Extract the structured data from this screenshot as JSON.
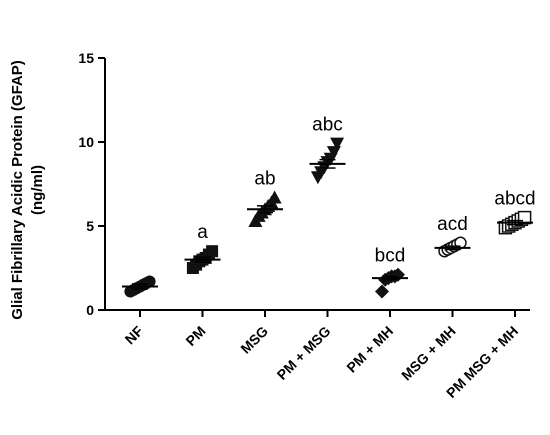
{
  "chart_data": {
    "type": "scatter",
    "title": "",
    "ylabel": {
      "line1": "Glial Fibrillary Acidic Protein (GFAP)",
      "line2": "(ng/ml)"
    },
    "xlabel": "",
    "ylim": [
      0,
      15
    ],
    "yticks": [
      "0",
      "5",
      "10",
      "15"
    ],
    "ytick_values": [
      0,
      5,
      10,
      15
    ],
    "grid": false,
    "legend": "none",
    "categories": [
      "NF",
      "PM",
      "MSG",
      "PM + MSG",
      "PM + MH",
      "MSG + MH",
      "PM MSG + MH"
    ],
    "groups": [
      {
        "category": "NF",
        "marker": "circle-filled",
        "mean": 1.4,
        "error": 0.15,
        "significance": "",
        "points": [
          1.1,
          1.2,
          1.3,
          1.4,
          1.5,
          1.6,
          1.7
        ]
      },
      {
        "category": "PM",
        "marker": "square-filled",
        "mean": 3.0,
        "error": 0.15,
        "significance": "a",
        "points": [
          2.5,
          2.7,
          2.9,
          3.0,
          3.1,
          3.3,
          3.5
        ]
      },
      {
        "category": "MSG",
        "marker": "triangle-up-filled",
        "mean": 6.0,
        "error": 0.2,
        "significance": "ab",
        "points": [
          5.3,
          5.6,
          5.8,
          6.0,
          6.2,
          6.4,
          6.7
        ]
      },
      {
        "category": "PM + MSG",
        "marker": "triangle-down-filled",
        "mean": 8.7,
        "error": 0.25,
        "significance": "abc",
        "points": [
          7.9,
          8.2,
          8.5,
          8.8,
          9.0,
          9.4,
          9.9
        ]
      },
      {
        "category": "PM + MH",
        "marker": "diamond-filled",
        "mean": 1.9,
        "error": 0.1,
        "significance": "bcd",
        "points": [
          1.1,
          1.8,
          1.9,
          2.0,
          2.0,
          2.1
        ]
      },
      {
        "category": "MSG + MH",
        "marker": "circle-open",
        "mean": 3.7,
        "error": 0.1,
        "significance": "acd",
        "points": [
          3.5,
          3.6,
          3.7,
          3.8,
          3.9,
          4.0
        ]
      },
      {
        "category": "PM MSG + MH",
        "marker": "square-open",
        "mean": 5.2,
        "error": 0.12,
        "significance": "abcd",
        "points": [
          4.9,
          5.0,
          5.1,
          5.2,
          5.3,
          5.4,
          5.5
        ]
      }
    ]
  }
}
